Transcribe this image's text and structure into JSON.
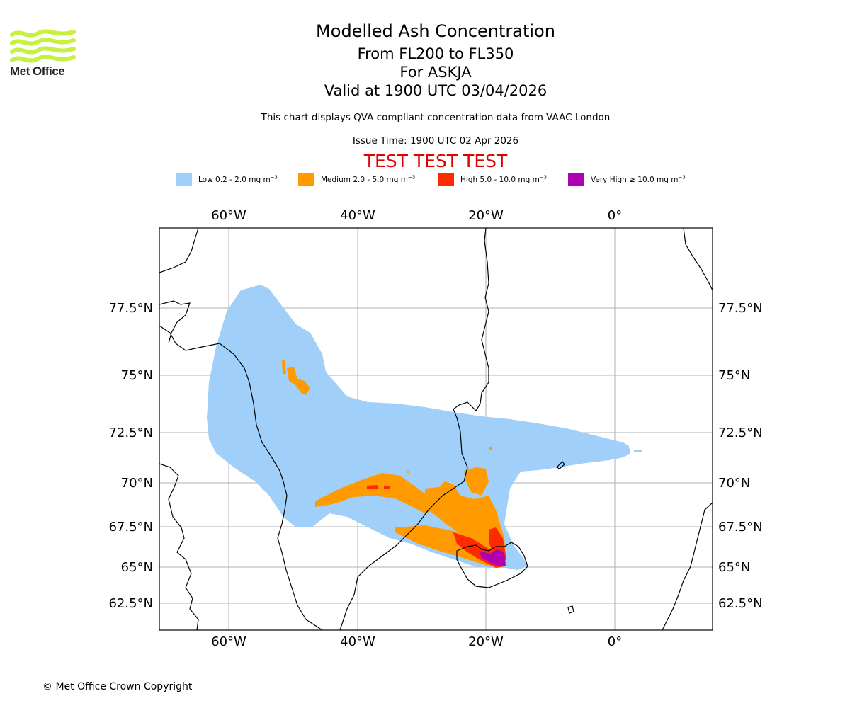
{
  "header": {
    "title": "Modelled Ash Concentration",
    "subtitle_levels": "From FL200 to FL350",
    "subtitle_volcano": "For ASKJA",
    "subtitle_valid": "Valid at 1900 UTC 03/04/2026",
    "disclaimer": "This chart displays QVA compliant concentration data from VAAC London",
    "issue_time": "Issue Time: 1900 UTC 02 Apr 2026",
    "test_banner": "TEST TEST TEST"
  },
  "logo": {
    "text": "Met Office",
    "color": "#c8f040",
    "icon": "met-office-wave-logo"
  },
  "legend": [
    {
      "label": "Low 0.2 - 2.0 mg m",
      "color": "#a0d0fa"
    },
    {
      "label": "Medium 2.0 - 5.0 mg m",
      "color": "#ff9a00"
    },
    {
      "label": "High 5.0 - 10.0 mg m",
      "color": "#ff2a00"
    },
    {
      "label": "Very High  ≥  10.0 mg m",
      "color": "#b000b0"
    }
  ],
  "legend_unit_exponent": "−3",
  "map": {
    "lon_ticks": [
      "60°W",
      "40°W",
      "20°W",
      "0°"
    ],
    "lat_ticks": [
      "77.5°N",
      "75°N",
      "72.5°N",
      "70°N",
      "67.5°N",
      "65°N",
      "62.5°N"
    ],
    "volcano": "ASKJA"
  },
  "footer": {
    "copyright": "© Met Office Crown Copyright"
  }
}
